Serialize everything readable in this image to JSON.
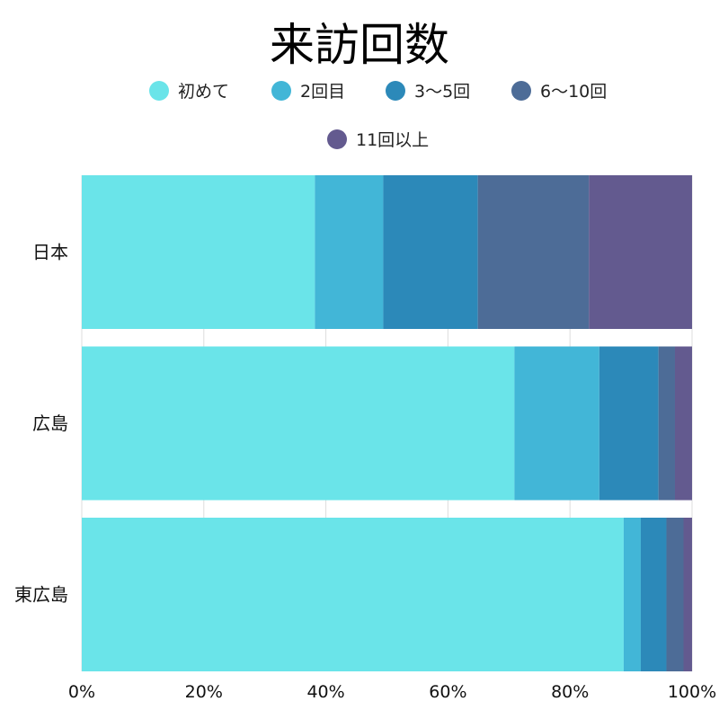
{
  "chart_data": {
    "type": "bar",
    "orientation": "horizontal",
    "stacked": "percent",
    "title": "来訪回数",
    "categories": [
      "日本",
      "広島",
      "東広島"
    ],
    "series": [
      {
        "name": "初めて",
        "color": "#6ae4e9",
        "values": [
          38.2,
          70.9,
          88.8
        ]
      },
      {
        "name": "2回目",
        "color": "#42b6d7",
        "values": [
          11.2,
          13.9,
          2.8
        ]
      },
      {
        "name": "3〜5回",
        "color": "#2c89b9",
        "values": [
          15.5,
          9.7,
          4.2
        ]
      },
      {
        "name": "6〜10回",
        "color": "#4d6c97",
        "values": [
          18.2,
          2.7,
          2.8
        ]
      },
      {
        "name": "11回以上",
        "color": "#635a8f",
        "values": [
          16.9,
          2.8,
          1.4
        ]
      }
    ],
    "xlim": [
      0,
      100
    ],
    "xticks": [
      "0%",
      "20%",
      "40%",
      "60%",
      "80%",
      "100%"
    ],
    "grid": "vertical",
    "legend": "top"
  }
}
